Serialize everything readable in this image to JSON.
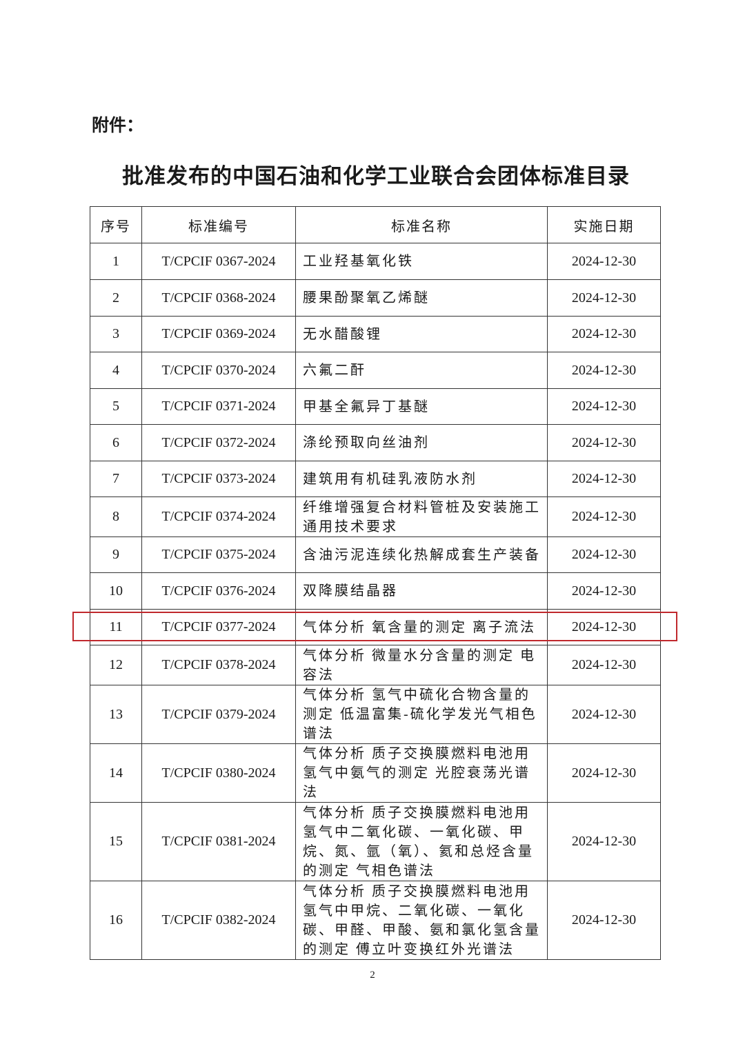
{
  "attachment_label": "附件：",
  "title": "批准发布的中国石油和化学工业联合会团体标准目录",
  "table": {
    "headers": [
      "序号",
      "标准编号",
      "标准名称",
      "实施日期"
    ],
    "rows": [
      {
        "no": "1",
        "code": "T/CPCIF 0367-2024",
        "name": "工业羟基氧化铁",
        "date": "2024-12-30"
      },
      {
        "no": "2",
        "code": "T/CPCIF 0368-2024",
        "name": "腰果酚聚氧乙烯醚",
        "date": "2024-12-30"
      },
      {
        "no": "3",
        "code": "T/CPCIF 0369-2024",
        "name": "无水醋酸锂",
        "date": "2024-12-30"
      },
      {
        "no": "4",
        "code": "T/CPCIF 0370-2024",
        "name": "六氟二酐",
        "date": "2024-12-30"
      },
      {
        "no": "5",
        "code": "T/CPCIF 0371-2024",
        "name": "甲基全氟异丁基醚",
        "date": "2024-12-30"
      },
      {
        "no": "6",
        "code": "T/CPCIF 0372-2024",
        "name": "涤纶预取向丝油剂",
        "date": "2024-12-30"
      },
      {
        "no": "7",
        "code": "T/CPCIF 0373-2024",
        "name": "建筑用有机硅乳液防水剂",
        "date": "2024-12-30"
      },
      {
        "no": "8",
        "code": "T/CPCIF 0374-2024",
        "name": "纤维增强复合材料管桩及安装施工通用技术要求",
        "date": "2024-12-30"
      },
      {
        "no": "9",
        "code": "T/CPCIF 0375-2024",
        "name": "含油污泥连续化热解成套生产装备",
        "date": "2024-12-30"
      },
      {
        "no": "10",
        "code": "T/CPCIF 0376-2024",
        "name": "双降膜结晶器",
        "date": "2024-12-30"
      },
      {
        "no": "11",
        "code": "T/CPCIF 0377-2024",
        "name": "气体分析 氧含量的测定 离子流法",
        "date": "2024-12-30",
        "highlighted": true
      },
      {
        "no": "12",
        "code": "T/CPCIF 0378-2024",
        "name": "气体分析 微量水分含量的测定 电容法",
        "date": "2024-12-30"
      },
      {
        "no": "13",
        "code": "T/CPCIF 0379-2024",
        "name": "气体分析 氢气中硫化合物含量的测定 低温富集-硫化学发光气相色谱法",
        "date": "2024-12-30"
      },
      {
        "no": "14",
        "code": "T/CPCIF 0380-2024",
        "name": "气体分析 质子交换膜燃料电池用氢气中氨气的测定 光腔衰荡光谱法",
        "date": "2024-12-30"
      },
      {
        "no": "15",
        "code": "T/CPCIF 0381-2024",
        "name": "气体分析 质子交换膜燃料电池用氢气中二氧化碳、一氧化碳、甲烷、氮、氩（氧）、氦和总烃含量的测定 气相色谱法",
        "date": "2024-12-30"
      },
      {
        "no": "16",
        "code": "T/CPCIF 0382-2024",
        "name": "气体分析 质子交换膜燃料电池用氢气中甲烷、二氧化碳、一氧化碳、甲醛、甲酸、氨和氯化氢含量的测定 傅立叶变换红外光谱法",
        "date": "2024-12-30"
      }
    ]
  },
  "highlight_color": "#c0282d",
  "page_number": "2"
}
